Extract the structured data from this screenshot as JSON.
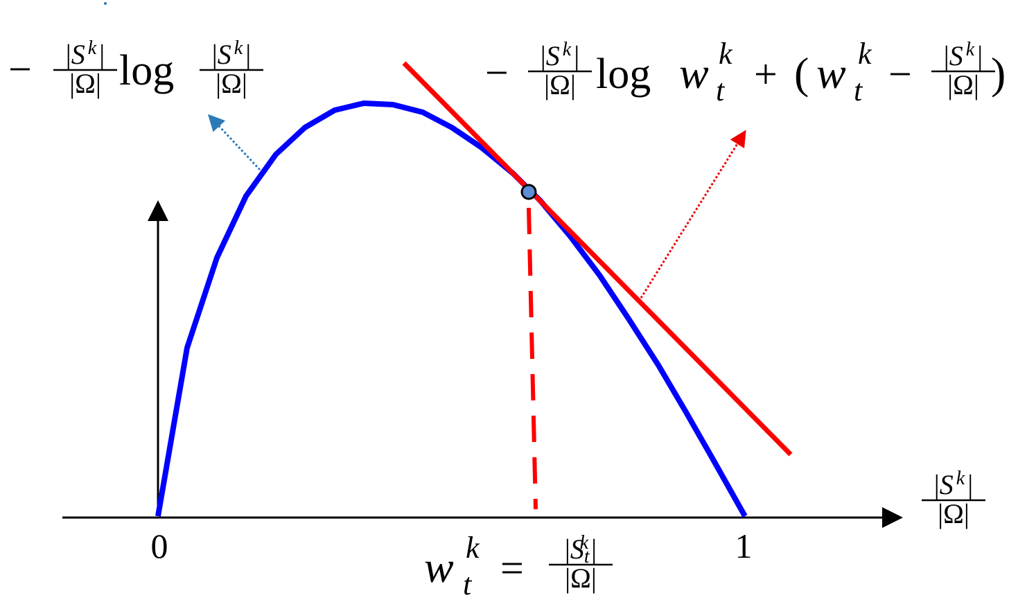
{
  "left_formula": {
    "minus": "−",
    "frac1": {
      "open": "|",
      "var": "S",
      "sup": "k",
      "close": "|",
      "den": "|Ω|"
    },
    "log": "log",
    "frac2": {
      "open": "|",
      "var": "S",
      "sup": "k",
      "close": "|",
      "den": "|Ω|"
    }
  },
  "right_formula": {
    "minus": "−",
    "frac1": {
      "open": "|",
      "var": "S",
      "sup": "k",
      "close": "|",
      "den": "|Ω|"
    },
    "log": "log",
    "w": "w",
    "w_sup": "k",
    "w_sub": "t",
    "plus": "+",
    "open_paren": "(",
    "w2": "w",
    "w2_sup": "k",
    "w2_sub": "t",
    "minus2": "−",
    "frac2": {
      "open": "|",
      "var": "S",
      "sup": "k",
      "close": "|",
      "den": "|Ω|"
    },
    "close_paren": ")"
  },
  "x_axis": {
    "tick0": "0",
    "tick1": "1",
    "label": {
      "open": "|",
      "var": "S",
      "sup": "k",
      "close": "|",
      "den": "|Ω|"
    }
  },
  "point_label": {
    "w": "w",
    "sup": "k",
    "sub": "t",
    "eq": "=",
    "frac": {
      "open": "|",
      "var": "S",
      "sub": "t",
      "sup": "k",
      "close": "|",
      "den": "|Ω|"
    }
  }
}
